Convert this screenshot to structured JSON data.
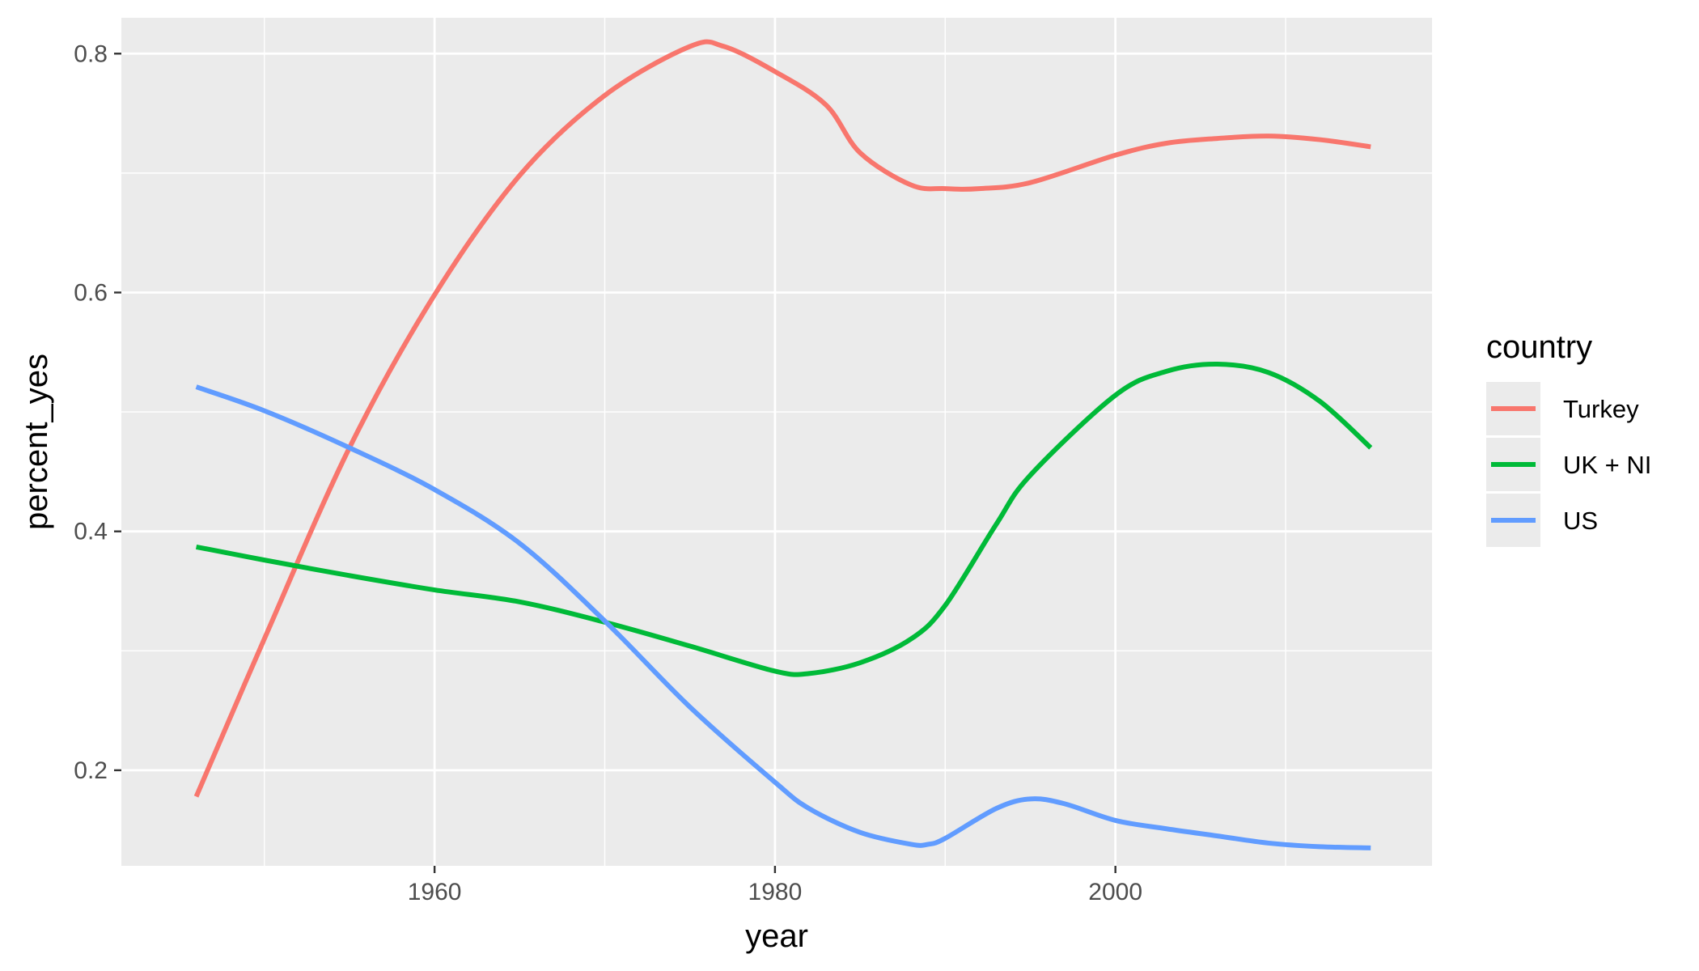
{
  "chart_data": {
    "type": "line",
    "xlabel": "year",
    "ylabel": "percent_yes",
    "xlim": [
      1941.6,
      2018.6
    ],
    "ylim": [
      0.12,
      0.83
    ],
    "x_ticks": [
      1960,
      1980,
      2000
    ],
    "x_minor_ticks": [
      1950,
      1970,
      1990,
      2010
    ],
    "y_ticks": [
      0.2,
      0.4,
      0.6,
      0.8
    ],
    "y_minor_ticks": [
      0.3,
      0.5,
      0.7
    ],
    "grid": true,
    "legend": {
      "title": "country",
      "placement": "right"
    },
    "series": [
      {
        "name": "Turkey",
        "color": "#F8766D",
        "x": [
          1946,
          1950,
          1955,
          1960,
          1965,
          1970,
          1975,
          1977,
          1980,
          1983,
          1985,
          1988,
          1990,
          1992,
          1995,
          2000,
          2003,
          2006,
          2009,
          2012,
          2015
        ],
        "y": [
          0.178,
          0.31,
          0.47,
          0.598,
          0.698,
          0.765,
          0.806,
          0.806,
          0.785,
          0.757,
          0.717,
          0.69,
          0.687,
          0.687,
          0.692,
          0.715,
          0.725,
          0.729,
          0.731,
          0.728,
          0.722
        ]
      },
      {
        "name": "UK + NI",
        "color": "#00BA38",
        "x": [
          1946,
          1950,
          1955,
          1960,
          1965,
          1970,
          1975,
          1980,
          1982,
          1985,
          1988,
          1990,
          1993,
          1995,
          2000,
          2003,
          2006,
          2009,
          2012,
          2015
        ],
        "y": [
          0.387,
          0.376,
          0.363,
          0.351,
          0.341,
          0.324,
          0.304,
          0.283,
          0.281,
          0.29,
          0.31,
          0.338,
          0.406,
          0.447,
          0.514,
          0.534,
          0.54,
          0.533,
          0.509,
          0.47
        ]
      },
      {
        "name": "US",
        "color": "#619CFF",
        "x": [
          1946,
          1950,
          1955,
          1960,
          1965,
          1970,
          1975,
          1980,
          1982,
          1985,
          1988,
          1989,
          1990,
          1993,
          1995,
          1997,
          2000,
          2003,
          2006,
          2009,
          2012,
          2015
        ],
        "y": [
          0.521,
          0.501,
          0.47,
          0.435,
          0.39,
          0.325,
          0.253,
          0.19,
          0.168,
          0.148,
          0.138,
          0.138,
          0.143,
          0.168,
          0.176,
          0.172,
          0.158,
          0.151,
          0.145,
          0.139,
          0.136,
          0.135
        ]
      }
    ]
  }
}
